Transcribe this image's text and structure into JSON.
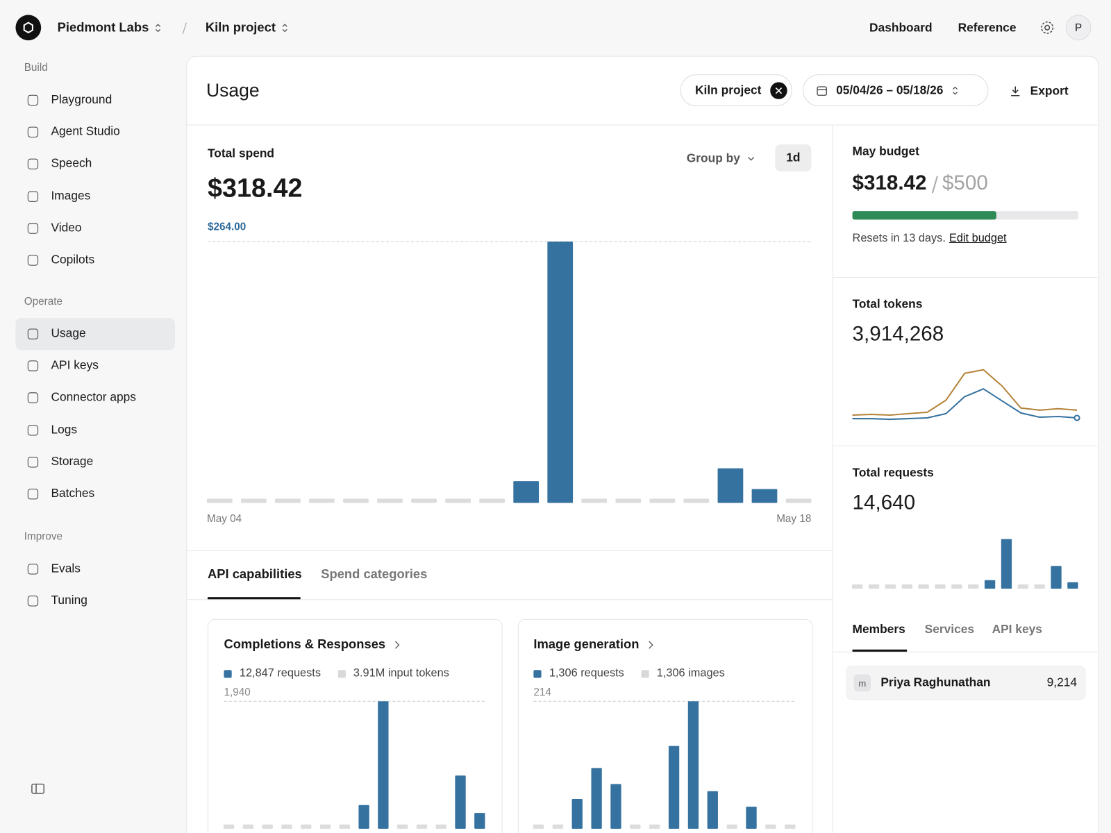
{
  "header": {
    "org": "Piedmont Labs",
    "project": "Kiln project",
    "nav": [
      "Dashboard",
      "Reference"
    ],
    "avatar": "P"
  },
  "sidebar": [
    {
      "title": "Build",
      "items": [
        "Playground",
        "Agent Studio",
        "Speech",
        "Images",
        "Video",
        "Copilots"
      ]
    },
    {
      "title": "Operate",
      "items": [
        "Usage",
        "API keys",
        "Connector apps",
        "Logs",
        "Storage",
        "Batches"
      ]
    },
    {
      "title": "Improve",
      "items": [
        "Evals",
        "Tuning"
      ]
    }
  ],
  "page": {
    "title": "Usage",
    "filter": "Kiln project",
    "date_range": "05/04/26 – 05/18/26",
    "export": "Export"
  },
  "spend": {
    "label": "Total spend",
    "total": "$318.42",
    "group_by": "Group by",
    "interval": "1d"
  },
  "budget": {
    "label": "May budget",
    "spent": 318.42,
    "spent_label": "$318.42",
    "limit": 500,
    "limit_label": "$500",
    "note": "Resets in 13 days.",
    "link": "Edit budget"
  },
  "tokens": {
    "label": "Total tokens",
    "total": "3,914,268"
  },
  "requests": {
    "label": "Total requests",
    "total": "14,640"
  },
  "capability_tabs": [
    "API capabilities",
    "Spend categories"
  ],
  "cards": [
    {
      "title": "Completions & Responses",
      "legend": [
        {
          "name": "12,847 requests",
          "color": "#3572a0"
        },
        {
          "name": "3.91M input tokens",
          "color": "#d9d9d9"
        }
      ]
    },
    {
      "title": "Image generation",
      "legend": [
        {
          "name": "1,306 requests",
          "color": "#3572a0"
        },
        {
          "name": "1,306 images",
          "color": "#d9d9d9"
        }
      ]
    }
  ],
  "member_tabs": [
    "Members",
    "Services",
    "API keys"
  ],
  "members": [
    {
      "initial": "m",
      "name": "Priya Raghunathan",
      "value": "9,214"
    }
  ],
  "chart_data": [
    {
      "type": "bar",
      "categories": [
        "May 04",
        null,
        null,
        null,
        null,
        null,
        null,
        null,
        null,
        null,
        null,
        null,
        null,
        null,
        null,
        null,
        null,
        "May 18"
      ],
      "values": [
        0,
        0,
        0,
        0,
        0,
        0,
        0,
        0,
        0,
        22,
        264,
        0,
        0,
        0,
        0,
        35,
        14,
        0
      ],
      "color": "#3572a0",
      "empty_color": "#dcdcdc",
      "ylim": [
        0,
        264
      ],
      "yticks": [
        {
          "value": 264,
          "label": "$264.00"
        }
      ]
    },
    {
      "type": "line",
      "series": [
        {
          "color": "#b5843a",
          "values": [
            14,
            15,
            14,
            16,
            18,
            35,
            73,
            78,
            55,
            24,
            21,
            23,
            21
          ]
        },
        {
          "color": "#3572a0",
          "values": [
            9,
            9,
            8,
            9,
            10,
            16,
            40,
            51,
            34,
            17,
            11,
            12,
            10
          ]
        }
      ],
      "ylim": [
        0,
        100
      ]
    },
    {
      "type": "bar",
      "values": [
        0,
        0,
        0,
        0,
        0,
        0,
        0,
        0,
        12,
        70,
        0,
        0,
        32,
        9
      ],
      "color": "#3572a0",
      "empty_color": "#dcdcdc",
      "ylim": [
        0,
        70
      ],
      "yticks": []
    },
    {
      "type": "bar",
      "values": [
        0,
        0,
        0,
        0,
        0,
        0,
        0,
        360,
        1940,
        0,
        0,
        0,
        810,
        240
      ],
      "color": "#3572a0",
      "empty_color": "#dcdcdc",
      "ylim": [
        0,
        1940
      ],
      "yticks": [
        {
          "value": 1940,
          "label": "1,940"
        }
      ]
    },
    {
      "type": "bar",
      "values": [
        0,
        0,
        50,
        102,
        75,
        0,
        0,
        139,
        214,
        63,
        0,
        37,
        0,
        0
      ],
      "color": "#3572a0",
      "empty_color": "#dcdcdc",
      "ylim": [
        0,
        214
      ],
      "yticks": [
        214
      ]
    }
  ]
}
